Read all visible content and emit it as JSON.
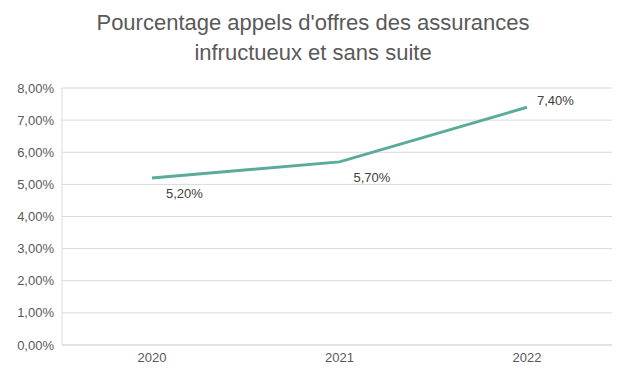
{
  "chart_data": {
    "type": "line",
    "title": "Pourcentage appels d'offres des assurances infructueux et sans suite",
    "categories": [
      "2020",
      "2021",
      "2022"
    ],
    "values": [
      5.2,
      5.7,
      7.4
    ],
    "value_labels": [
      "5,20%",
      "5,70%",
      "7,40%"
    ],
    "color": "#5aab99",
    "ylim": [
      0,
      8
    ],
    "yticks": [
      {
        "value": 0,
        "label": "0,00%"
      },
      {
        "value": 1,
        "label": "1,00%"
      },
      {
        "value": 2,
        "label": "2,00%"
      },
      {
        "value": 3,
        "label": "3,00%"
      },
      {
        "value": 4,
        "label": "4,00%"
      },
      {
        "value": 5,
        "label": "5,00%"
      },
      {
        "value": 6,
        "label": "6,00%"
      },
      {
        "value": 7,
        "label": "7,00%"
      },
      {
        "value": 8,
        "label": "8,00%"
      }
    ],
    "grid": true,
    "data_labels": true
  }
}
